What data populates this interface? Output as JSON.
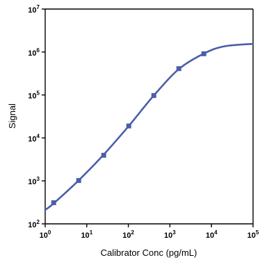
{
  "chart_data": {
    "type": "line",
    "xlabel": "Calibrator Conc (pg/mL)",
    "ylabel": "Signal",
    "x_scale": "log",
    "y_scale": "log",
    "xlim": [
      1,
      100000
    ],
    "ylim": [
      100,
      10000000
    ],
    "x_ticks": [
      {
        "base": "10",
        "exp": "0"
      },
      {
        "base": "10",
        "exp": "1"
      },
      {
        "base": "10",
        "exp": "2"
      },
      {
        "base": "10",
        "exp": "3"
      },
      {
        "base": "10",
        "exp": "4"
      },
      {
        "base": "10",
        "exp": "5"
      }
    ],
    "y_ticks": [
      {
        "base": "10",
        "exp": "2"
      },
      {
        "base": "10",
        "exp": "3"
      },
      {
        "base": "10",
        "exp": "4"
      },
      {
        "base": "10",
        "exp": "5"
      },
      {
        "base": "10",
        "exp": "6"
      },
      {
        "base": "10",
        "exp": "7"
      }
    ],
    "grid": false,
    "legend": "none",
    "series": [
      {
        "kind": "points",
        "marker": "square",
        "color": "#4a5ea8",
        "x": [
          1.6,
          6.4,
          25.6,
          102.4,
          409.6,
          1638.4,
          6553.6
        ],
        "y": [
          310,
          1020,
          3950,
          19000,
          97000,
          410000,
          910000
        ]
      },
      {
        "kind": "fit-curve",
        "color": "#4a5ea8",
        "x": [
          1,
          1.6,
          6.4,
          25.6,
          102.4,
          409.6,
          1638.4,
          6553.6,
          20000,
          100000
        ],
        "y": [
          210,
          300,
          1030,
          4100,
          19000,
          97000,
          400000,
          920000,
          1350000,
          1550000
        ]
      }
    ]
  }
}
